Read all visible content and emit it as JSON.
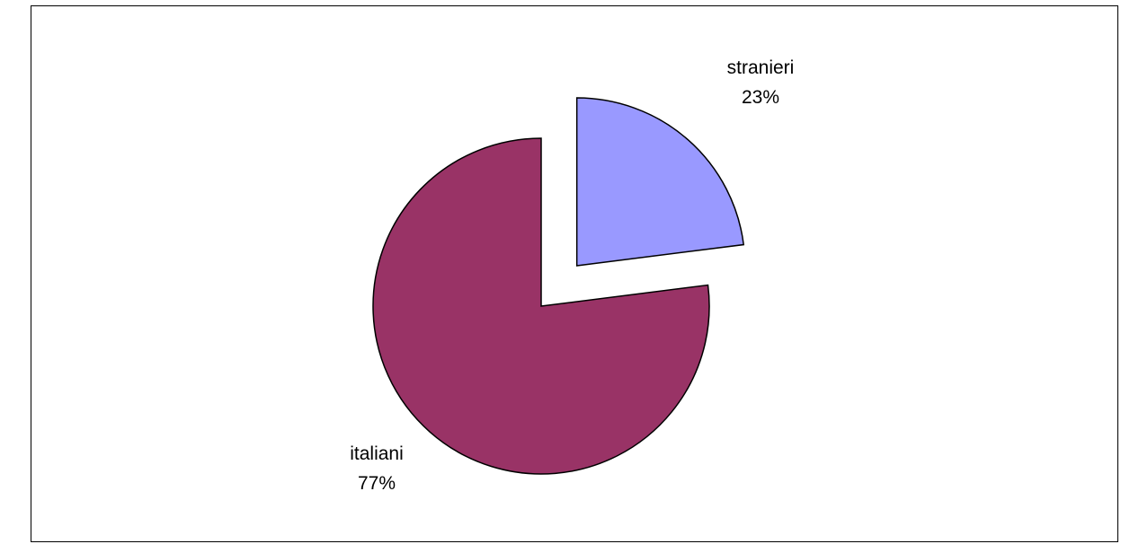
{
  "chart_data": {
    "type": "pie",
    "title": "",
    "slices": [
      {
        "name": "stranieri",
        "value": 23,
        "percent_label": "23%",
        "color": "#9999ff",
        "exploded": true
      },
      {
        "name": "italiani",
        "value": 77,
        "percent_label": "77%",
        "color": "#993366",
        "exploded": false
      }
    ],
    "legend": "none"
  }
}
